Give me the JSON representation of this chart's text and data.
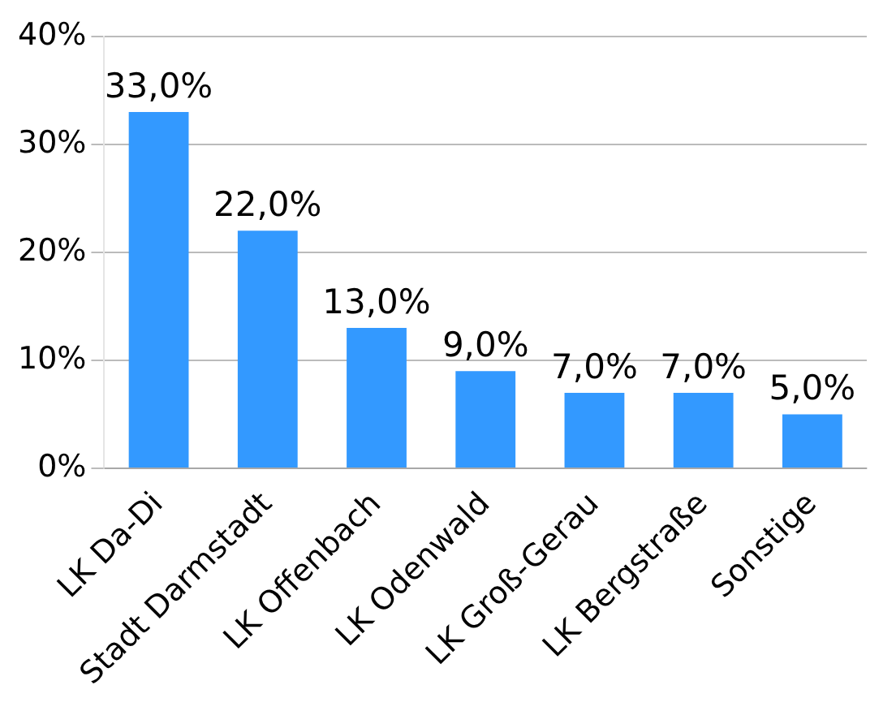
{
  "chart_data": {
    "type": "bar",
    "categories": [
      "LK Da-Di",
      "Stadt Darmstadt",
      "LK Offenbach",
      "LK Odenwald",
      "LK Groß-Gerau",
      "LK Bergstraße",
      "Sonstige"
    ],
    "values": [
      33,
      22,
      13,
      9,
      7,
      7,
      5
    ],
    "value_labels": [
      "33,0%",
      "22,0%",
      "13,0%",
      "9,0%",
      "7,0%",
      "7,0%",
      "5,0%"
    ],
    "color": "#3399ff",
    "ylim": [
      0,
      40
    ],
    "yticks": [
      {
        "value": 0,
        "label": "0%"
      },
      {
        "value": 10,
        "label": "10%"
      },
      {
        "value": 20,
        "label": "20%"
      },
      {
        "value": 30,
        "label": "30%"
      },
      {
        "value": 40,
        "label": "40%"
      }
    ],
    "grid": "y"
  }
}
